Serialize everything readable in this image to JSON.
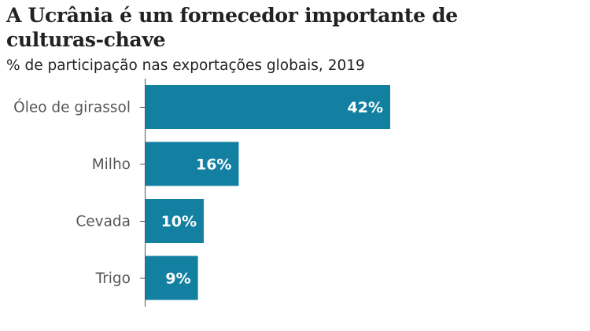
{
  "chart_data": {
    "type": "bar",
    "orientation": "horizontal",
    "title": "A Ucrânia é um fornecedor importante de culturas-chave",
    "subtitle": "% de participação nas exportações globais, 2019",
    "categories": [
      "Óleo de girassol",
      "Milho",
      "Cevada",
      "Trigo"
    ],
    "values": [
      42,
      16,
      10,
      9
    ],
    "data_labels": [
      "42%",
      "16%",
      "10%",
      "9%"
    ],
    "xlim": [
      0,
      42
    ],
    "grid": false,
    "bar_color": "#1380A1"
  }
}
